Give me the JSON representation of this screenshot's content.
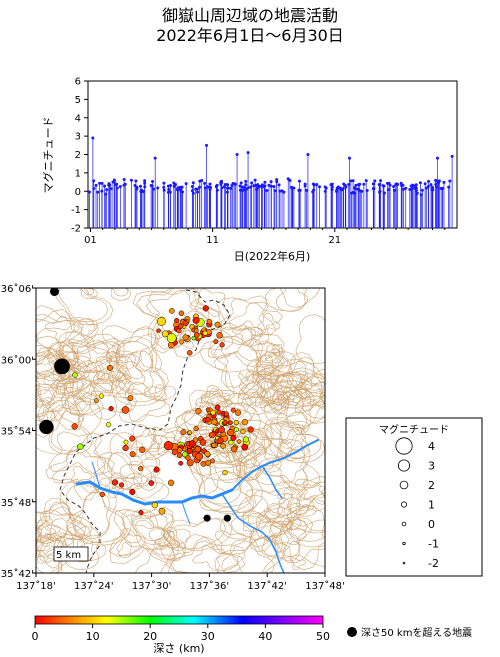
{
  "title": "御嶽山周辺域の地震活動",
  "subtitle": "2022年6月1日～6月30日",
  "colors": {
    "stem": "#1a1aff",
    "river": "#2a8cff",
    "contour": "#c8965a",
    "deep": "#000000"
  },
  "chart_data": [
    {
      "type": "scatter",
      "subtype": "magnitude-time stem plot",
      "xlabel": "日(2022年6月)",
      "ylabel": "マグニチュード",
      "xlim": [
        0.8,
        31.0
      ],
      "ylim": [
        -2,
        6
      ],
      "x_ticks": [
        1,
        11,
        21
      ],
      "x_tick_labels": [
        "01",
        "11",
        "21"
      ],
      "y_ticks": [
        -2,
        -1,
        0,
        1,
        2,
        3,
        4,
        5,
        6
      ],
      "grid": false,
      "summary_peaks": [
        {
          "day": 1.2,
          "magnitude": 2.9
        },
        {
          "day": 6.3,
          "magnitude": 1.8
        },
        {
          "day": 10.5,
          "magnitude": 2.5
        },
        {
          "day": 13.0,
          "magnitude": 2.0
        },
        {
          "day": 13.9,
          "magnitude": 2.1
        },
        {
          "day": 18.8,
          "magnitude": 2.0
        },
        {
          "day": 22.2,
          "magnitude": 1.8
        },
        {
          "day": 29.4,
          "magnitude": 1.8
        },
        {
          "day": 30.6,
          "magnitude": 1.9
        }
      ]
    },
    {
      "type": "scatter",
      "subtype": "epicenter map",
      "x_ticks": [
        137.3,
        137.4,
        137.5,
        137.6,
        137.7,
        137.8
      ],
      "x_tick_labels": [
        "137˚18'",
        "137˚24'",
        "137˚30'",
        "137˚36'",
        "137˚42'",
        "137˚48'"
      ],
      "y_ticks": [
        35.7,
        35.8,
        35.9,
        36.0,
        36.1
      ],
      "y_tick_labels": [
        "35˚42'",
        "35˚48'",
        "35˚54'",
        "36˚00'",
        "36˚06'"
      ],
      "xlim": [
        137.3,
        137.8
      ],
      "ylim": [
        35.7,
        36.1
      ],
      "scale_bar": "5 km",
      "deep_events": [
        {
          "lon": 137.332,
          "lat": 36.095,
          "magnitude": 1.5
        },
        {
          "lon": 137.345,
          "lat": 35.99,
          "magnitude": 2.8
        },
        {
          "lon": 137.318,
          "lat": 35.905,
          "magnitude": 2.6
        },
        {
          "lon": 137.596,
          "lat": 35.777,
          "magnitude": 1.0
        },
        {
          "lon": 137.631,
          "lat": 35.777,
          "magnitude": 1.0
        }
      ],
      "legend": {
        "title": "マグニチュード",
        "items": [
          {
            "label": "4",
            "magnitude": 4
          },
          {
            "label": "3",
            "magnitude": 3
          },
          {
            "label": "2",
            "magnitude": 2
          },
          {
            "label": "1",
            "magnitude": 1
          },
          {
            "label": "0",
            "magnitude": 0
          },
          {
            "label": "-1",
            "magnitude": -1
          },
          {
            "label": "-2",
            "magnitude": -2
          }
        ]
      }
    },
    {
      "type": "heatmap",
      "subtype": "depth colorbar",
      "label": "深さ (km)",
      "range": [
        0,
        50
      ],
      "ticks": [
        0,
        10,
        20,
        30,
        40,
        50
      ],
      "tick_labels": [
        "0",
        "10",
        "20",
        "30",
        "40",
        "50"
      ],
      "deep_label": "深さ50 kmを超える地震"
    }
  ]
}
